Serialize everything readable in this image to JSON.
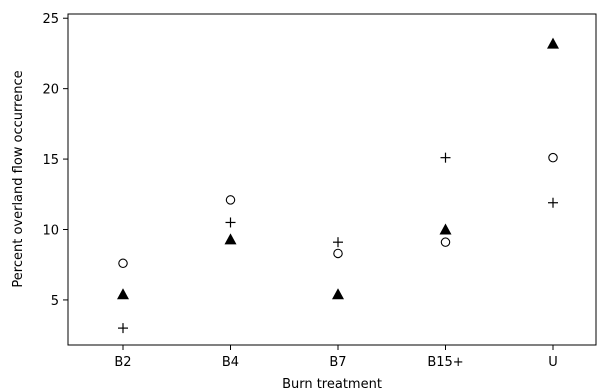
{
  "chart_data": {
    "type": "scatter",
    "xlabel": "Burn treatment",
    "ylabel": "Percent overland flow occurrence",
    "categories": [
      "B2",
      "B4",
      "B7",
      "B15+",
      "U"
    ],
    "ylim": [
      1.8,
      25.3
    ],
    "yticks": [
      5,
      10,
      15,
      20,
      25
    ],
    "grid": false,
    "series": [
      {
        "marker": "circle",
        "values": [
          7.6,
          12.1,
          8.3,
          9.1,
          15.1
        ]
      },
      {
        "marker": "plus",
        "values": [
          3.0,
          10.5,
          9.1,
          15.1,
          11.9
        ]
      },
      {
        "marker": "triangle",
        "values": [
          5.4,
          9.3,
          5.4,
          10.0,
          23.2
        ]
      }
    ]
  }
}
